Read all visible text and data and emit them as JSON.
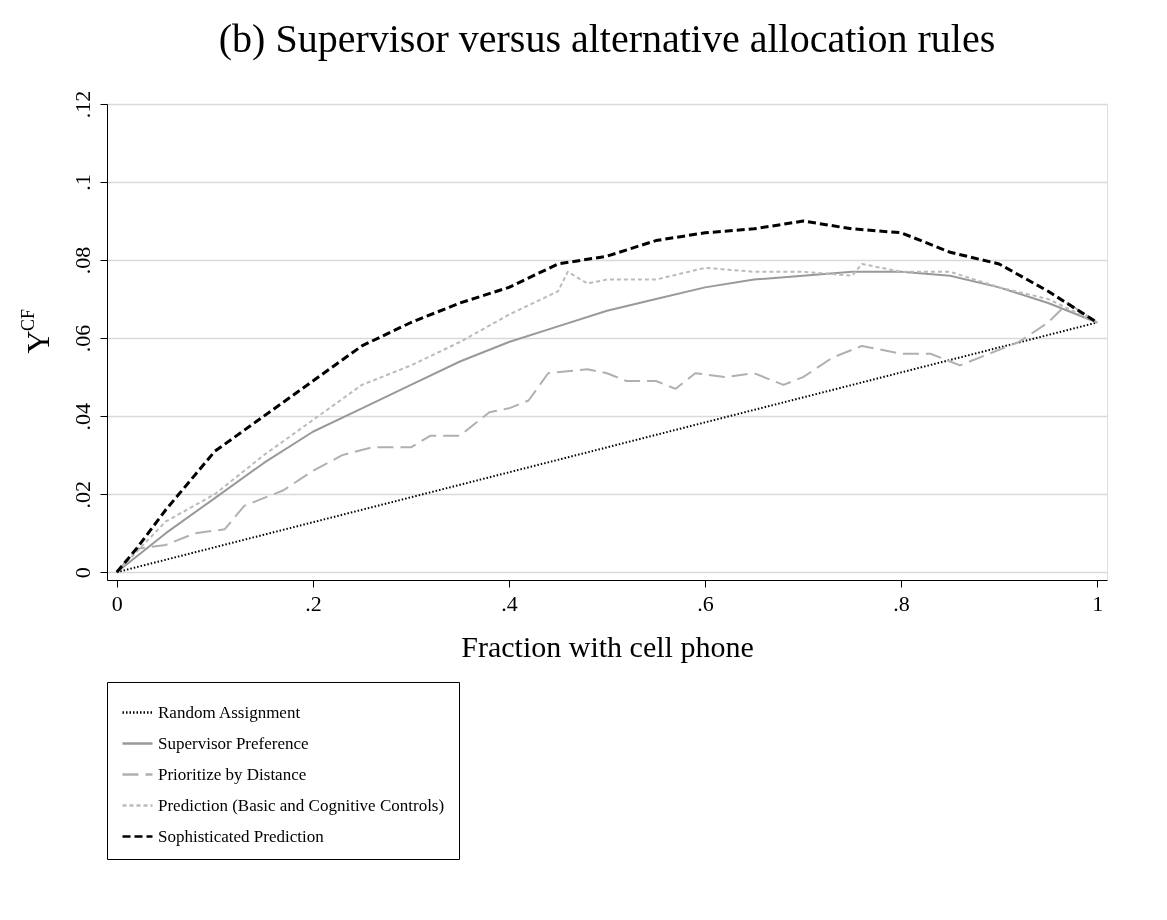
{
  "chart_data": {
    "type": "line",
    "title": "(b) Supervisor versus alternative allocation rules",
    "xlabel": "Fraction with cell phone",
    "ylabel": "Y$^{CF}$",
    "xlim": [
      -0.01,
      1.01
    ],
    "xticks": [
      0,
      {
        "value": 0.2,
        "label": ".2"
      },
      {
        "value": 0.4,
        "label": ".4"
      },
      {
        "value": 0.6,
        "label": ".6"
      },
      {
        "value": 0.8,
        "label": ".8"
      },
      1
    ],
    "ylim": [
      -0.002,
      0.12
    ],
    "yticks": [
      0,
      {
        "value": 0.02,
        "label": ".02"
      },
      {
        "value": 0.04,
        "label": ".04"
      },
      {
        "value": 0.06,
        "label": ".06"
      },
      {
        "value": 0.08,
        "label": ".08"
      },
      {
        "value": 0.1,
        "label": ".1"
      },
      {
        "value": 0.12,
        "label": ".12"
      }
    ],
    "grid": "y",
    "legend": "bottom",
    "marker": "none",
    "series": [
      {
        "name": "Random Assignment",
        "color": "#000000",
        "line_style": "dotted",
        "x": [
          0,
          1
        ],
        "values": [
          0,
          0.064
        ]
      },
      {
        "name": "Supervisor Preference",
        "color": "#999999",
        "line_style": "solid",
        "x": [
          0,
          0.05,
          0.1,
          0.15,
          0.2,
          0.25,
          0.3,
          0.35,
          0.4,
          0.45,
          0.5,
          0.55,
          0.6,
          0.65,
          0.7,
          0.75,
          0.8,
          0.85,
          0.9,
          0.95,
          1
        ],
        "values": [
          0,
          0.01,
          0.019,
          0.028,
          0.036,
          0.042,
          0.048,
          0.054,
          0.059,
          0.063,
          0.067,
          0.07,
          0.073,
          0.075,
          0.076,
          0.077,
          0.077,
          0.076,
          0.073,
          0.069,
          0.064
        ]
      },
      {
        "name": "Prioritize by Distance",
        "color": "#b0b0b0",
        "line_style": "dashed",
        "x": [
          0,
          0.02,
          0.05,
          0.08,
          0.11,
          0.13,
          0.17,
          0.2,
          0.23,
          0.26,
          0.3,
          0.32,
          0.35,
          0.38,
          0.4,
          0.42,
          0.44,
          0.48,
          0.5,
          0.52,
          0.55,
          0.57,
          0.59,
          0.62,
          0.65,
          0.68,
          0.7,
          0.73,
          0.76,
          0.8,
          0.83,
          0.86,
          0.88,
          0.92,
          0.95,
          0.97,
          1
        ],
        "values": [
          0,
          0.006,
          0.007,
          0.01,
          0.011,
          0.017,
          0.021,
          0.026,
          0.03,
          0.032,
          0.032,
          0.035,
          0.035,
          0.041,
          0.042,
          0.044,
          0.051,
          0.052,
          0.051,
          0.049,
          0.049,
          0.047,
          0.051,
          0.05,
          0.051,
          0.048,
          0.05,
          0.055,
          0.058,
          0.056,
          0.056,
          0.053,
          0.055,
          0.059,
          0.064,
          0.069,
          0.064
        ]
      },
      {
        "name": "Prediction (Basic and Cognitive Controls)",
        "color": "#bbbbbb",
        "line_style": "dashed",
        "x": [
          0,
          0.05,
          0.1,
          0.15,
          0.2,
          0.25,
          0.3,
          0.35,
          0.4,
          0.45,
          0.46,
          0.48,
          0.5,
          0.55,
          0.6,
          0.65,
          0.7,
          0.75,
          0.76,
          0.8,
          0.85,
          0.9,
          0.95,
          1
        ],
        "values": [
          0,
          0.013,
          0.02,
          0.03,
          0.039,
          0.048,
          0.053,
          0.059,
          0.066,
          0.072,
          0.077,
          0.074,
          0.075,
          0.075,
          0.078,
          0.077,
          0.077,
          0.076,
          0.079,
          0.077,
          0.077,
          0.073,
          0.07,
          0.064
        ]
      },
      {
        "name": "Sophisticated Prediction",
        "color": "#000000",
        "line_style": "dashed",
        "x": [
          0,
          0.02,
          0.05,
          0.1,
          0.15,
          0.2,
          0.25,
          0.3,
          0.35,
          0.4,
          0.45,
          0.5,
          0.55,
          0.6,
          0.65,
          0.7,
          0.75,
          0.8,
          0.85,
          0.9,
          0.95,
          1
        ],
        "values": [
          0,
          0.006,
          0.016,
          0.031,
          0.04,
          0.049,
          0.058,
          0.064,
          0.069,
          0.073,
          0.079,
          0.081,
          0.085,
          0.087,
          0.088,
          0.09,
          0.088,
          0.087,
          0.082,
          0.079,
          0.072,
          0.064
        ]
      }
    ]
  }
}
